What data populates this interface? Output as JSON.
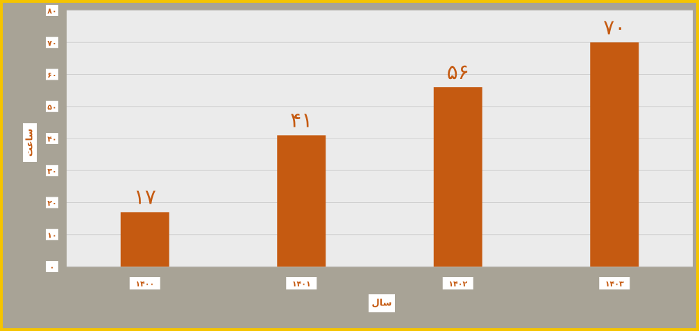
{
  "chart_data": {
    "type": "bar",
    "categories": [
      "۱۴۰۰",
      "۱۴۰۱",
      "۱۴۰۲",
      "۱۴۰۳"
    ],
    "values": [
      17,
      41,
      56,
      70
    ],
    "data_labels": [
      "۱۷",
      "۴۱",
      "۵۶",
      "۷۰"
    ],
    "y_ticks": [
      0,
      10,
      20,
      30,
      40,
      50,
      60,
      70,
      80
    ],
    "y_tick_labels": [
      "۰",
      "۱۰",
      "۲۰",
      "۳۰",
      "۴۰",
      "۵۰",
      "۶۰",
      "۷۰",
      "۸۰"
    ],
    "ylim": [
      0,
      80
    ],
    "xlabel": "سال",
    "ylabel": "ساعت",
    "grid": true,
    "legend": "none",
    "colors": {
      "bar": "#c55a11",
      "plot_background": "#ebebeb",
      "frame_background": "#a8a396",
      "frame_border": "#f5c400",
      "gridline": "#d0d0d0",
      "text": "#c55a11"
    }
  }
}
